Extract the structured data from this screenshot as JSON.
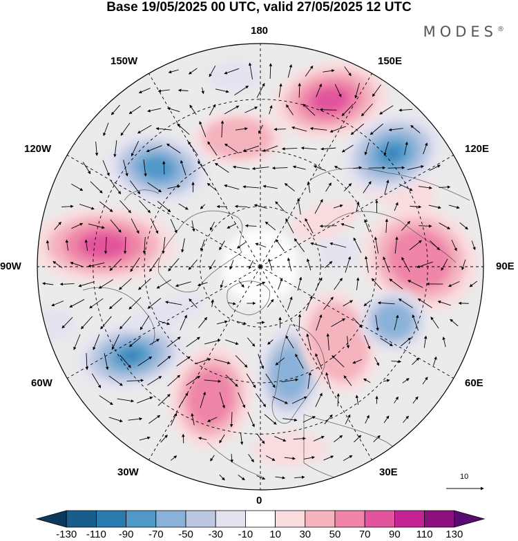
{
  "header": {
    "title": "Base 19/05/2025 00 UTC, valid 27/05/2025 12 UTC",
    "brand": "MODES",
    "brand_mark": "®"
  },
  "map": {
    "projection": "north-polar-stereographic",
    "lon_labels": {
      "top": "180",
      "bottom": "0",
      "left": "90W",
      "right": "90E",
      "upper_left_outer": "150W",
      "upper_right_outer": "150E",
      "upper_left": "120W",
      "upper_right": "120E",
      "lower_left": "60W",
      "lower_right": "60E",
      "lower_left_outer": "30W",
      "lower_right_outer": "30E"
    },
    "anomaly_centers": [
      {
        "sign": "positive",
        "region": "North Pacific near 150E-160E",
        "max_level": 90
      },
      {
        "sign": "negative",
        "region": "East Siberia near 120E-130E",
        "min_level": -90
      },
      {
        "sign": "negative",
        "region": "Alaska / Bering near 120W-130W",
        "min_level": -70
      },
      {
        "sign": "positive",
        "region": "Western Canada near 90W-100W",
        "max_level": 90
      },
      {
        "sign": "positive",
        "region": "Central Siberia near 90E-100E",
        "max_level": 70
      },
      {
        "sign": "negative",
        "region": "Western North Atlantic near 55W",
        "min_level": -90
      },
      {
        "sign": "positive",
        "region": "Central North Atlantic near 20W-30W",
        "max_level": 70
      },
      {
        "sign": "negative",
        "region": "Scandinavia / Barents",
        "min_level": -70
      },
      {
        "sign": "positive",
        "region": "Western Siberia near 60E",
        "max_level": 70
      },
      {
        "sign": "negative",
        "region": "Kazakhstan near 70E-80E",
        "min_level": -90
      }
    ],
    "vector_reference": {
      "label": "10"
    }
  },
  "colorbar": {
    "ticks": [
      "-130",
      "-110",
      "-90",
      "-70",
      "-50",
      "-30",
      "-10",
      "10",
      "30",
      "50",
      "70",
      "90",
      "110",
      "130"
    ],
    "colors": [
      "#0d3a5c",
      "#175e8c",
      "#2a7bb0",
      "#4f98c8",
      "#8ab2d8",
      "#bcc7e2",
      "#e3e3f0",
      "#ffffff",
      "#f9dcde",
      "#f4b3bd",
      "#ef85a8",
      "#e2549d",
      "#c42494",
      "#8e1180",
      "#5a0b72"
    ]
  }
}
